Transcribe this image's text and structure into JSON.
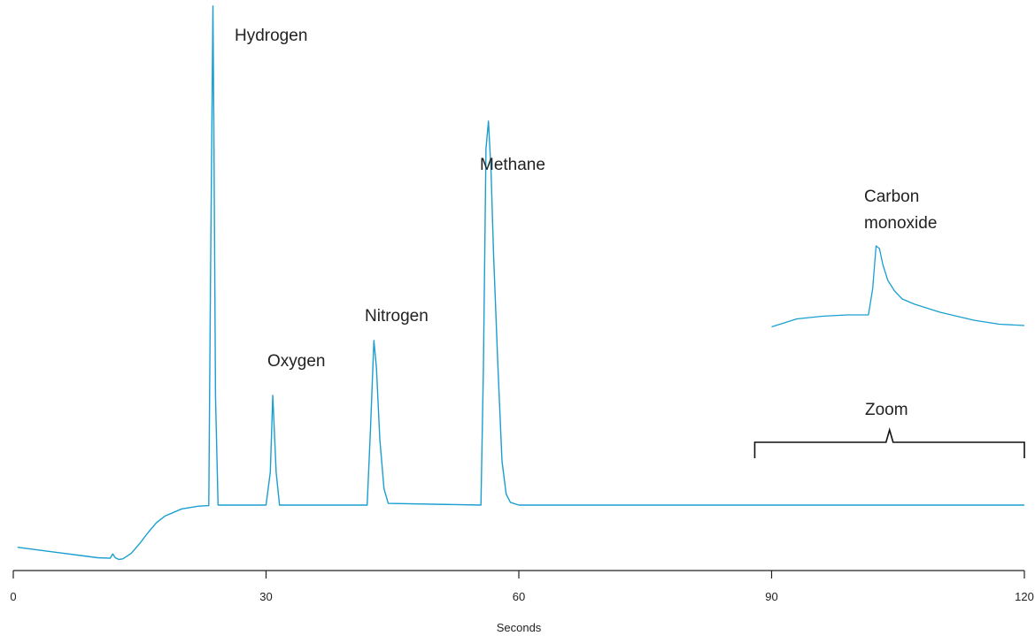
{
  "chart_data": {
    "type": "line",
    "xlabel": "Seconds",
    "ylabel": "",
    "xlim": [
      0,
      120
    ],
    "x_ticks": [
      0,
      30,
      60,
      90,
      120
    ],
    "x_tick_labels": [
      "0",
      "30",
      "60",
      "90",
      "120"
    ],
    "y_axis_shown": false,
    "grid": false,
    "line_color": "#1a9fd0",
    "series": [
      {
        "x": [
          0.5,
          5,
          8,
          10,
          11.5,
          11.8,
          12.1,
          12.5,
          13,
          14,
          15,
          16,
          17,
          18,
          20,
          22,
          23.2,
          23.4,
          23.7,
          23.8,
          24.0,
          24.3,
          30,
          30.5,
          30.8,
          31.2,
          31.6,
          42,
          42.4,
          42.8,
          43.1,
          43.5,
          44,
          44.5,
          55.5,
          55.8,
          56.1,
          56.4,
          56.7,
          57,
          57.5,
          58,
          58.5,
          59,
          60,
          120
        ],
        "y": [
          2.3,
          1.4,
          0.8,
          0.4,
          0.3,
          1.1,
          0.4,
          0.1,
          0.2,
          1.2,
          3,
          5,
          6.8,
          8,
          9.3,
          9.8,
          9.9,
          50,
          101,
          80,
          30,
          10,
          10,
          16,
          30,
          16,
          10,
          10,
          24,
          40,
          35,
          22,
          13,
          10.3,
          10,
          35,
          75,
          80,
          71,
          56,
          36,
          18,
          12,
          10.5,
          10,
          10
        ]
      }
    ],
    "zoom_inset": {
      "x": [
        90,
        93,
        96,
        99,
        101.5,
        102,
        102.4,
        102.8,
        103.2,
        103.8,
        104.6,
        105.5,
        107,
        110,
        114,
        117,
        120
      ],
      "y": [
        0.1,
        0.7,
        0.9,
        1.0,
        1.0,
        3.0,
        6.2,
        6.0,
        4.8,
        3.6,
        2.8,
        2.2,
        1.8,
        1.2,
        0.6,
        0.3,
        0.2
      ],
      "bracket_x": [
        88,
        120
      ]
    },
    "annotations": [
      {
        "text": "Hydrogen",
        "x": 26.5,
        "y": 97
      },
      {
        "text": "Oxygen",
        "x": 30.8,
        "y": 36
      },
      {
        "text": "Nitrogen",
        "x": 42.8,
        "y": 48
      },
      {
        "text": "Methane",
        "x": 56.1,
        "y": 83
      },
      {
        "text": "Carbon",
        "x": 106,
        "y": 0
      },
      {
        "text": "monoxide",
        "x": 106,
        "y": 0
      },
      {
        "text": "Zoom",
        "x": 104,
        "y": 0
      }
    ],
    "labels": {
      "hydrogen": "Hydrogen",
      "oxygen": "Oxygen",
      "nitrogen": "Nitrogen",
      "methane": "Methane",
      "carbon": "Carbon",
      "monoxide": "monoxide",
      "zoom": "Zoom"
    }
  }
}
